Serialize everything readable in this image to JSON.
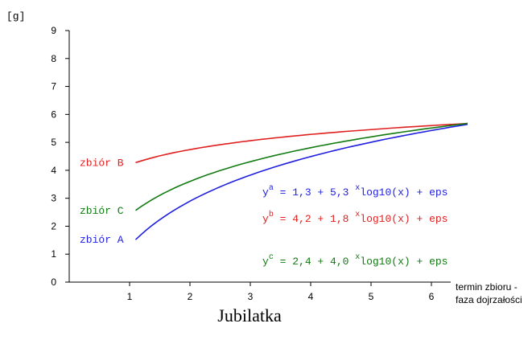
{
  "chart_data": {
    "type": "line",
    "title": "Jubilatka",
    "ylabel": "[g]",
    "xlabel_line1": "termin zbioru -",
    "xlabel_line2": "faza dojrzałości",
    "xlim": [
      0,
      6.8
    ],
    "ylim": [
      0,
      9
    ],
    "x_ticks": [
      1,
      2,
      3,
      4,
      5,
      6
    ],
    "y_ticks": [
      0,
      1,
      2,
      3,
      4,
      5,
      6,
      7,
      8,
      9
    ],
    "x_range": [
      1.1,
      6.6
    ],
    "grid": false,
    "series": [
      {
        "name": "zbiór A",
        "color": "#1f1fe0",
        "a": 1.3,
        "b": 5.3
      },
      {
        "name": "zbiór B",
        "color": "#e01f1f",
        "a": 4.2,
        "b": 1.8
      },
      {
        "name": "zbiór C",
        "color": "#117a11",
        "a": 2.4,
        "b": 4.0
      }
    ],
    "equations": [
      {
        "var": "y",
        "sup": "a",
        "text": " = 1,3 + 5,3 ",
        "op": "x",
        "tail": "log10(x) + eps",
        "color": "#1f1fe0"
      },
      {
        "var": "y",
        "sup": "b",
        "text": " = 4,2 + 1,8 ",
        "op": "x",
        "tail": "log10(x) + eps",
        "color": "#e01f1f"
      },
      {
        "var": "y",
        "sup": "c",
        "text": " = 2,4 + 4,0 ",
        "op": "x",
        "tail": "log10(x) + eps",
        "color": "#117a11"
      }
    ]
  }
}
